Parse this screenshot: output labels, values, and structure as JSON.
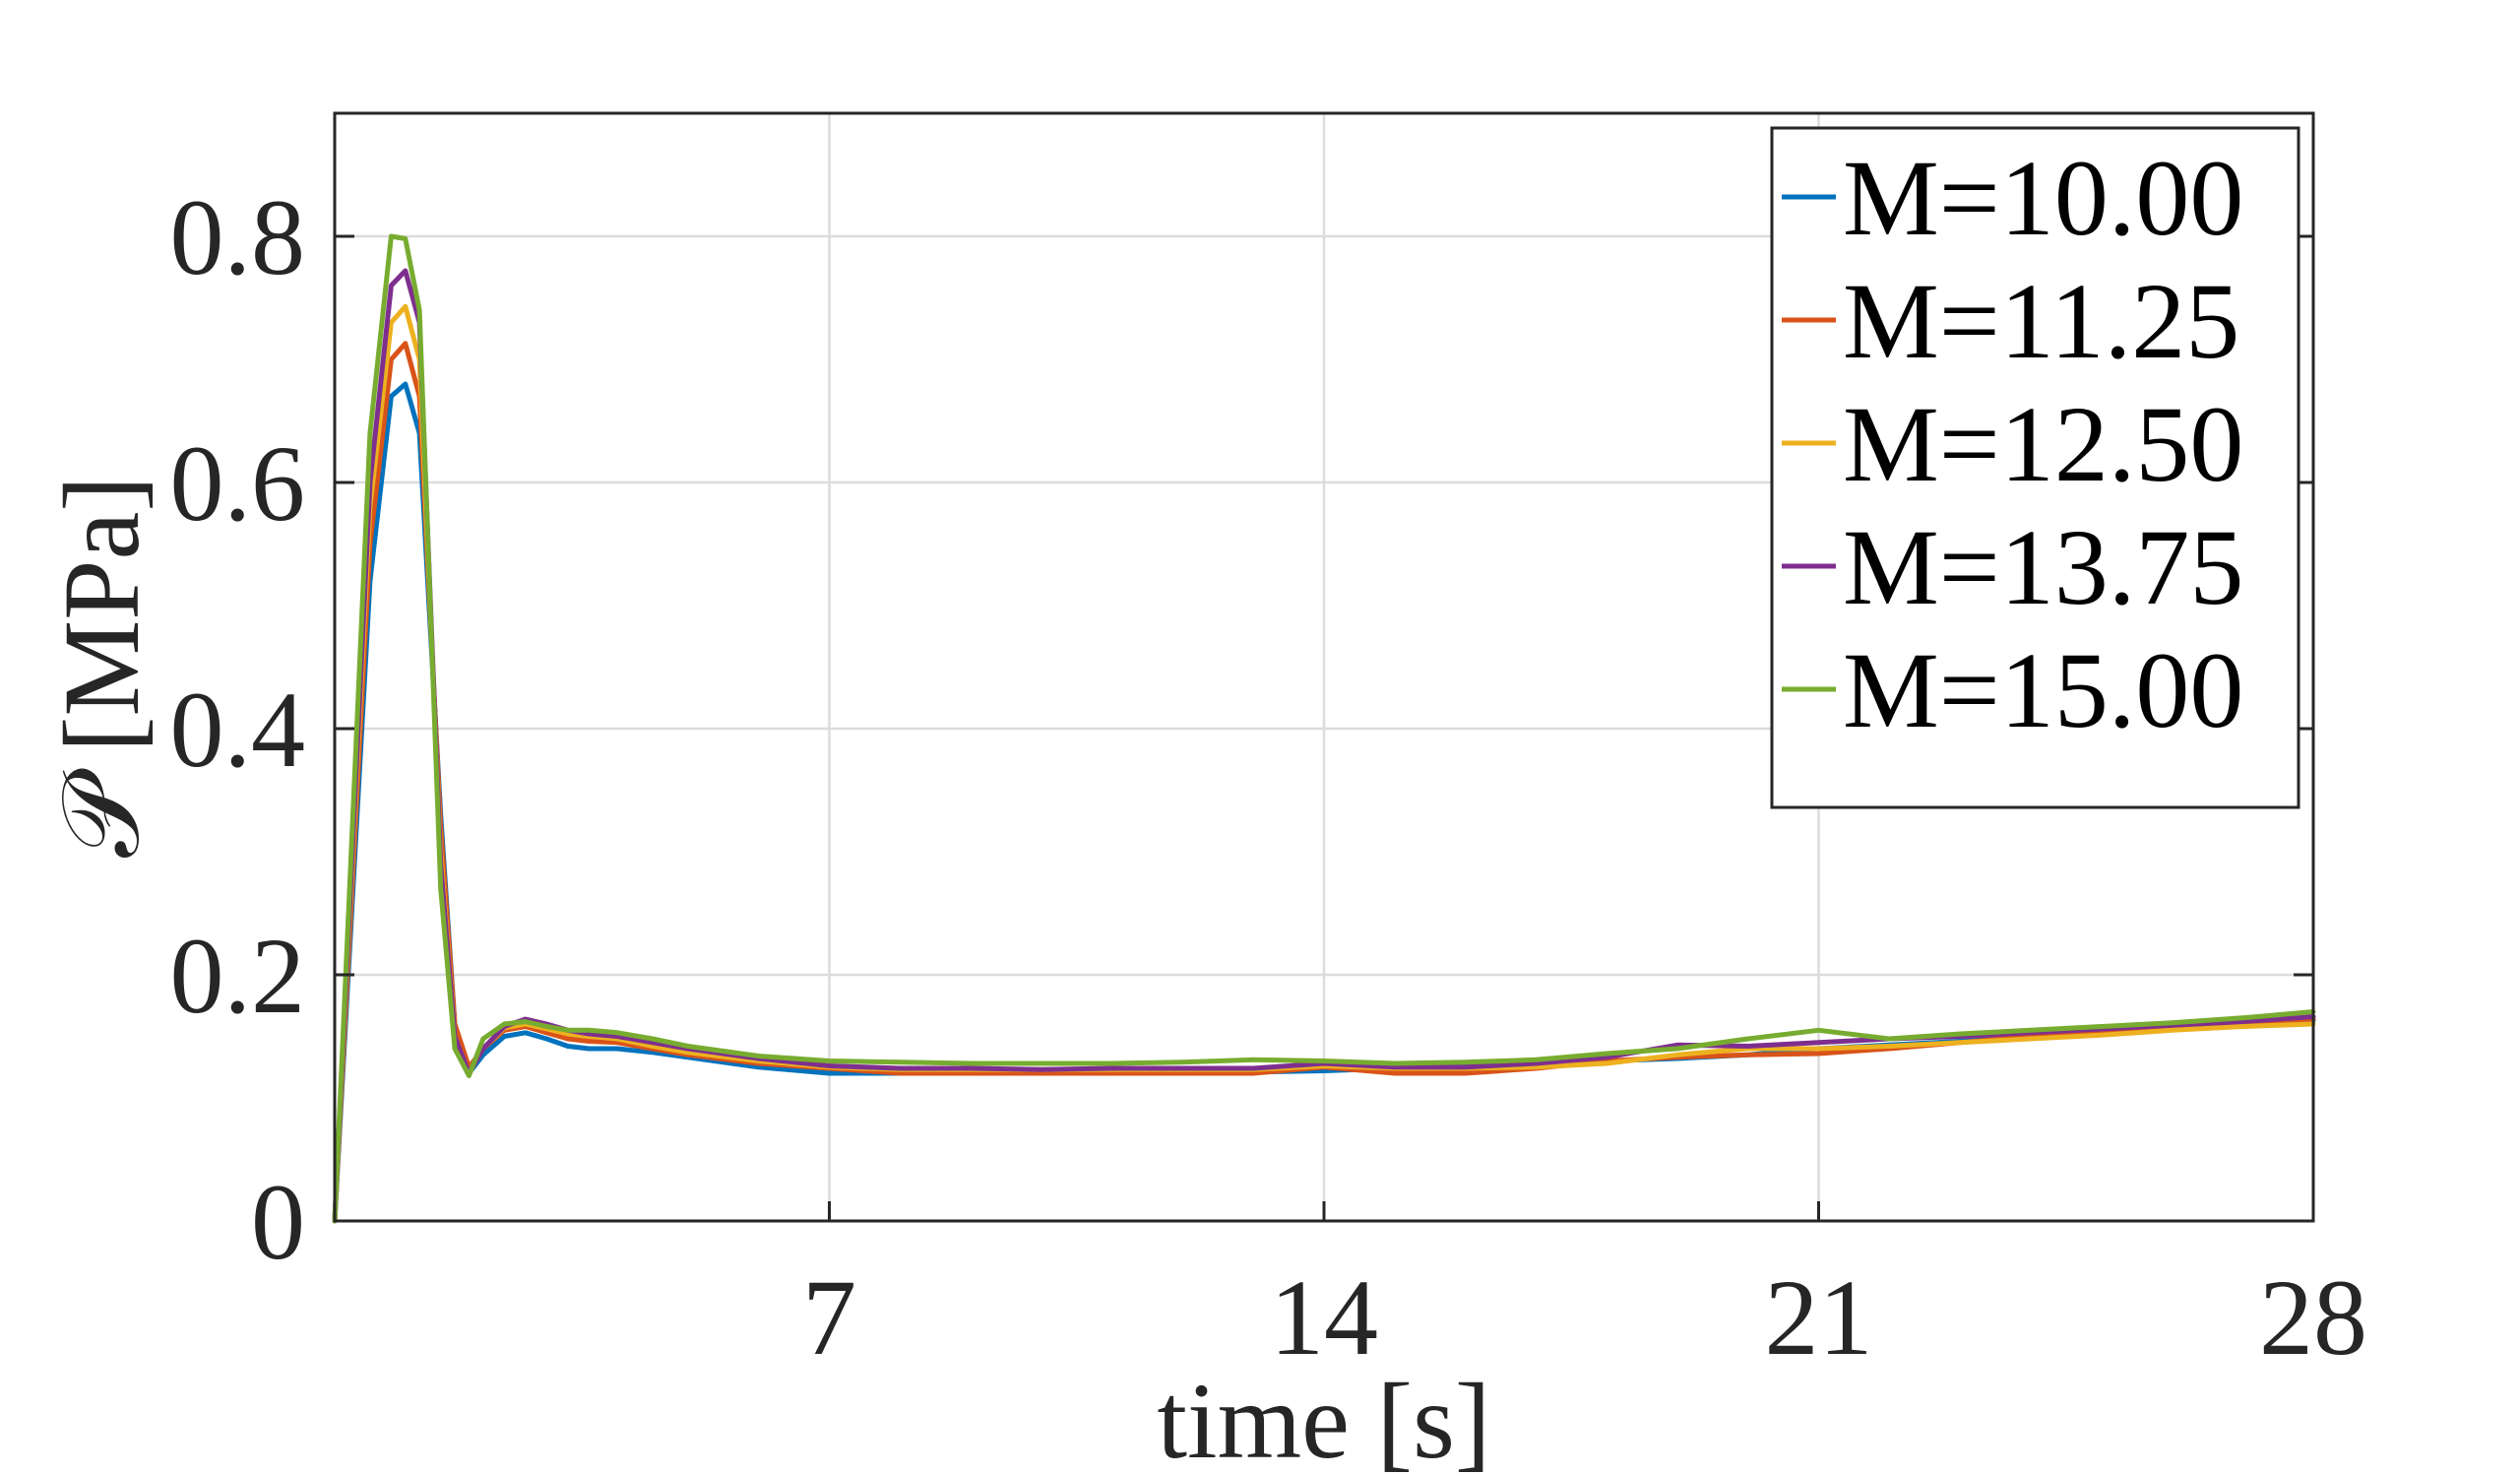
{
  "chart_data": {
    "type": "line",
    "title": "",
    "xlabel": "time [s]",
    "ylabel": "𝒫 [MPa]",
    "xlim": [
      0,
      28
    ],
    "ylim": [
      0,
      0.9
    ],
    "xticks": [
      7,
      14,
      21,
      28
    ],
    "xtick_labels": [
      "7",
      "14",
      "21",
      "28"
    ],
    "yticks": [
      0,
      0.2,
      0.4,
      0.6,
      0.8
    ],
    "ytick_labels": [
      "0",
      "0.2",
      "0.4",
      "0.6",
      "0.8"
    ],
    "grid": true,
    "legend_position": "top-right",
    "series": [
      {
        "name": "M=10.00",
        "color": "#0072BD",
        "x": [
          0,
          0.5,
          0.8,
          1.0,
          1.2,
          1.5,
          1.7,
          1.9,
          2.1,
          2.4,
          2.7,
          3.0,
          3.3,
          3.6,
          4.0,
          4.5,
          5.0,
          6.0,
          7.0,
          8.0,
          9.0,
          10.0,
          11.0,
          12.0,
          13.0,
          14.0,
          15.0,
          16.0,
          17.0,
          18.0,
          19.0,
          20.0,
          21.0,
          22.0,
          23.0,
          24.0,
          25.0,
          26.0,
          27.0,
          28.0
        ],
        "y": [
          0,
          0.52,
          0.67,
          0.68,
          0.64,
          0.33,
          0.16,
          0.12,
          0.135,
          0.15,
          0.153,
          0.148,
          0.142,
          0.14,
          0.14,
          0.137,
          0.133,
          0.125,
          0.12,
          0.12,
          0.121,
          0.12,
          0.121,
          0.121,
          0.121,
          0.122,
          0.124,
          0.126,
          0.128,
          0.13,
          0.132,
          0.135,
          0.14,
          0.143,
          0.146,
          0.15,
          0.153,
          0.157,
          0.16,
          0.163
        ]
      },
      {
        "name": "M=11.25",
        "color": "#D95319",
        "x": [
          0,
          0.5,
          0.8,
          1.0,
          1.2,
          1.5,
          1.7,
          1.9,
          2.1,
          2.4,
          2.7,
          3.0,
          3.3,
          3.6,
          4.0,
          4.5,
          5.0,
          6.0,
          7.0,
          8.0,
          9.0,
          10.0,
          11.0,
          12.0,
          13.0,
          14.0,
          15.0,
          16.0,
          17.0,
          18.0,
          19.0,
          20.0,
          21.0,
          22.0,
          23.0,
          24.0,
          25.0,
          26.0,
          27.0,
          28.0
        ],
        "y": [
          0,
          0.55,
          0.7,
          0.713,
          0.67,
          0.32,
          0.16,
          0.125,
          0.14,
          0.155,
          0.158,
          0.153,
          0.148,
          0.146,
          0.145,
          0.14,
          0.135,
          0.128,
          0.124,
          0.12,
          0.12,
          0.12,
          0.12,
          0.12,
          0.12,
          0.125,
          0.12,
          0.12,
          0.124,
          0.13,
          0.133,
          0.135,
          0.136,
          0.14,
          0.145,
          0.15,
          0.153,
          0.157,
          0.16,
          0.164
        ]
      },
      {
        "name": "M=12.50",
        "color": "#EDB120",
        "x": [
          0,
          0.5,
          0.8,
          1.0,
          1.2,
          1.5,
          1.7,
          1.9,
          2.1,
          2.4,
          2.7,
          3.0,
          3.3,
          3.6,
          4.0,
          4.5,
          5.0,
          6.0,
          7.0,
          8.0,
          9.0,
          10.0,
          11.0,
          12.0,
          13.0,
          14.0,
          15.0,
          16.0,
          17.0,
          18.0,
          19.0,
          20.0,
          21.0,
          22.0,
          23.0,
          24.0,
          25.0,
          26.0,
          27.0,
          28.0
        ],
        "y": [
          0,
          0.58,
          0.73,
          0.743,
          0.7,
          0.3,
          0.15,
          0.12,
          0.14,
          0.157,
          0.16,
          0.156,
          0.152,
          0.15,
          0.148,
          0.142,
          0.137,
          0.13,
          0.125,
          0.123,
          0.123,
          0.123,
          0.123,
          0.123,
          0.123,
          0.126,
          0.124,
          0.124,
          0.125,
          0.128,
          0.135,
          0.14,
          0.14,
          0.142,
          0.145,
          0.148,
          0.151,
          0.155,
          0.158,
          0.16
        ]
      },
      {
        "name": "M=13.75",
        "color": "#7E2F8E",
        "x": [
          0,
          0.5,
          0.8,
          1.0,
          1.2,
          1.5,
          1.7,
          1.9,
          2.1,
          2.4,
          2.7,
          3.0,
          3.3,
          3.6,
          4.0,
          4.5,
          5.0,
          6.0,
          7.0,
          8.0,
          9.0,
          10.0,
          11.0,
          12.0,
          13.0,
          14.0,
          15.0,
          16.0,
          17.0,
          18.0,
          19.0,
          20.0,
          21.0,
          22.0,
          23.0,
          24.0,
          25.0,
          26.0,
          27.0,
          28.0
        ],
        "y": [
          0,
          0.6,
          0.76,
          0.772,
          0.73,
          0.29,
          0.15,
          0.12,
          0.14,
          0.158,
          0.164,
          0.16,
          0.155,
          0.152,
          0.15,
          0.145,
          0.14,
          0.132,
          0.126,
          0.124,
          0.124,
          0.123,
          0.124,
          0.124,
          0.124,
          0.128,
          0.125,
          0.125,
          0.128,
          0.133,
          0.143,
          0.142,
          0.145,
          0.148,
          0.15,
          0.153,
          0.156,
          0.159,
          0.162,
          0.166
        ]
      },
      {
        "name": "M=15.00",
        "color": "#77AC30",
        "x": [
          0,
          0.5,
          0.8,
          1.0,
          1.2,
          1.5,
          1.7,
          1.9,
          2.1,
          2.4,
          2.7,
          3.0,
          3.3,
          3.6,
          4.0,
          4.5,
          5.0,
          6.0,
          7.0,
          8.0,
          9.0,
          10.0,
          11.0,
          12.0,
          13.0,
          14.0,
          15.0,
          16.0,
          17.0,
          18.0,
          19.0,
          20.0,
          21.0,
          22.0,
          23.0,
          24.0,
          25.0,
          26.0,
          27.0,
          28.0
        ],
        "y": [
          0,
          0.64,
          0.8,
          0.798,
          0.74,
          0.27,
          0.14,
          0.118,
          0.148,
          0.16,
          0.162,
          0.158,
          0.155,
          0.155,
          0.153,
          0.148,
          0.142,
          0.134,
          0.13,
          0.129,
          0.128,
          0.128,
          0.128,
          0.129,
          0.131,
          0.13,
          0.128,
          0.129,
          0.131,
          0.136,
          0.14,
          0.148,
          0.155,
          0.148,
          0.152,
          0.155,
          0.158,
          0.161,
          0.165,
          0.17
        ]
      }
    ]
  }
}
